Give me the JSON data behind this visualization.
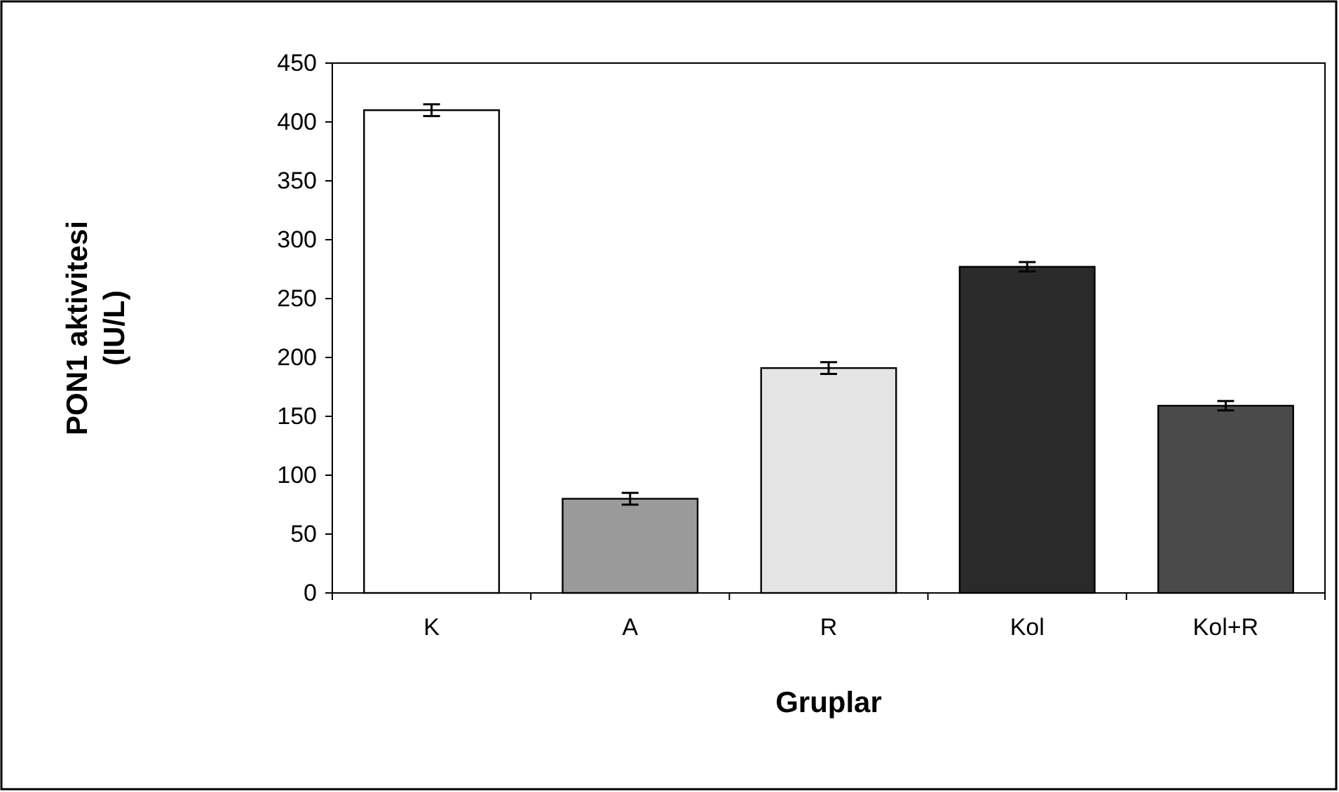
{
  "chart_data": {
    "type": "bar",
    "xlabel": "Gruplar",
    "ylabel": "PON1 aktivitesi (IU/L)",
    "categories": [
      "K",
      "A",
      "R",
      "Kol",
      "Kol+R"
    ],
    "values": [
      410,
      80,
      191,
      277,
      159
    ],
    "errors": [
      5,
      5,
      5,
      4,
      4
    ],
    "colors": [
      "#ffffff",
      "#9a9a9a",
      "#e4e4e4",
      "#2a2a2a",
      "#4a4a4a"
    ],
    "ylim": [
      0,
      450
    ],
    "yticks": [
      0,
      50,
      100,
      150,
      200,
      250,
      300,
      350,
      400,
      450
    ],
    "grid": false
  }
}
